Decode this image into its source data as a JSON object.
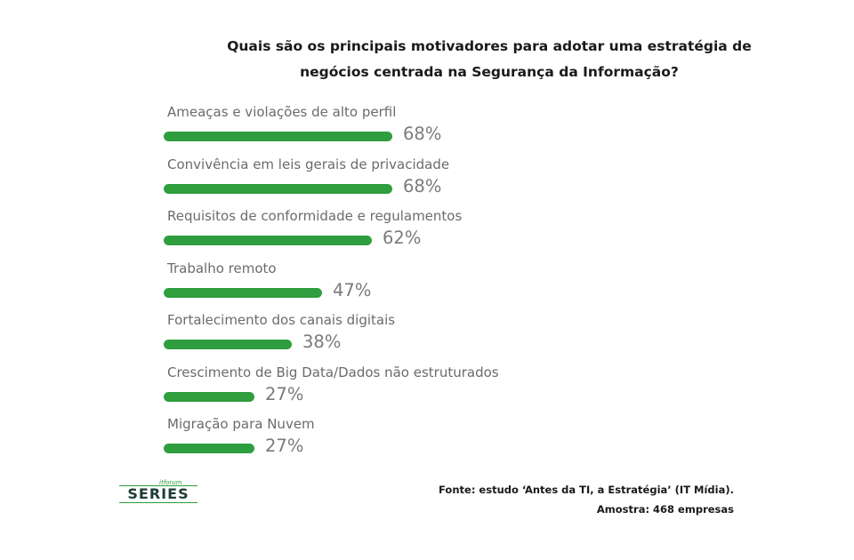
{
  "chart_data": {
    "type": "bar",
    "orientation": "horizontal",
    "title": "Quais são os principais motivadores para adotar uma estratégia de negócios centrada na Segurança da Informação?",
    "title_lines": [
      "Quais são os principais motivadores para adotar uma estratégia de",
      "negócios centrada na Segurança da Informação?"
    ],
    "categories": [
      "Ameaças e violações de alto perfil",
      "Convivência em leis gerais de privacidade",
      "Requisitos de conformidade e regulamentos",
      "Trabalho remoto",
      "Fortalecimento dos canais digitais",
      "Crescimento de Big Data/Dados não estruturados",
      "Migração para Nuvem"
    ],
    "values": [
      68,
      68,
      62,
      47,
      38,
      27,
      27
    ],
    "value_labels": [
      "68%",
      "68%",
      "62%",
      "47%",
      "38%",
      "27%",
      "27%"
    ],
    "unit": "%",
    "bar_color": "#2e9e3e",
    "grid": false,
    "legend": "none"
  },
  "footer": {
    "source": "Fonte: estudo ‘Antes da TI, a Estratégia’ (IT Mídia).",
    "sample": "Amostra: 468 empresas"
  },
  "logo": {
    "small_text": "itforum",
    "main_text": "SERIES"
  }
}
